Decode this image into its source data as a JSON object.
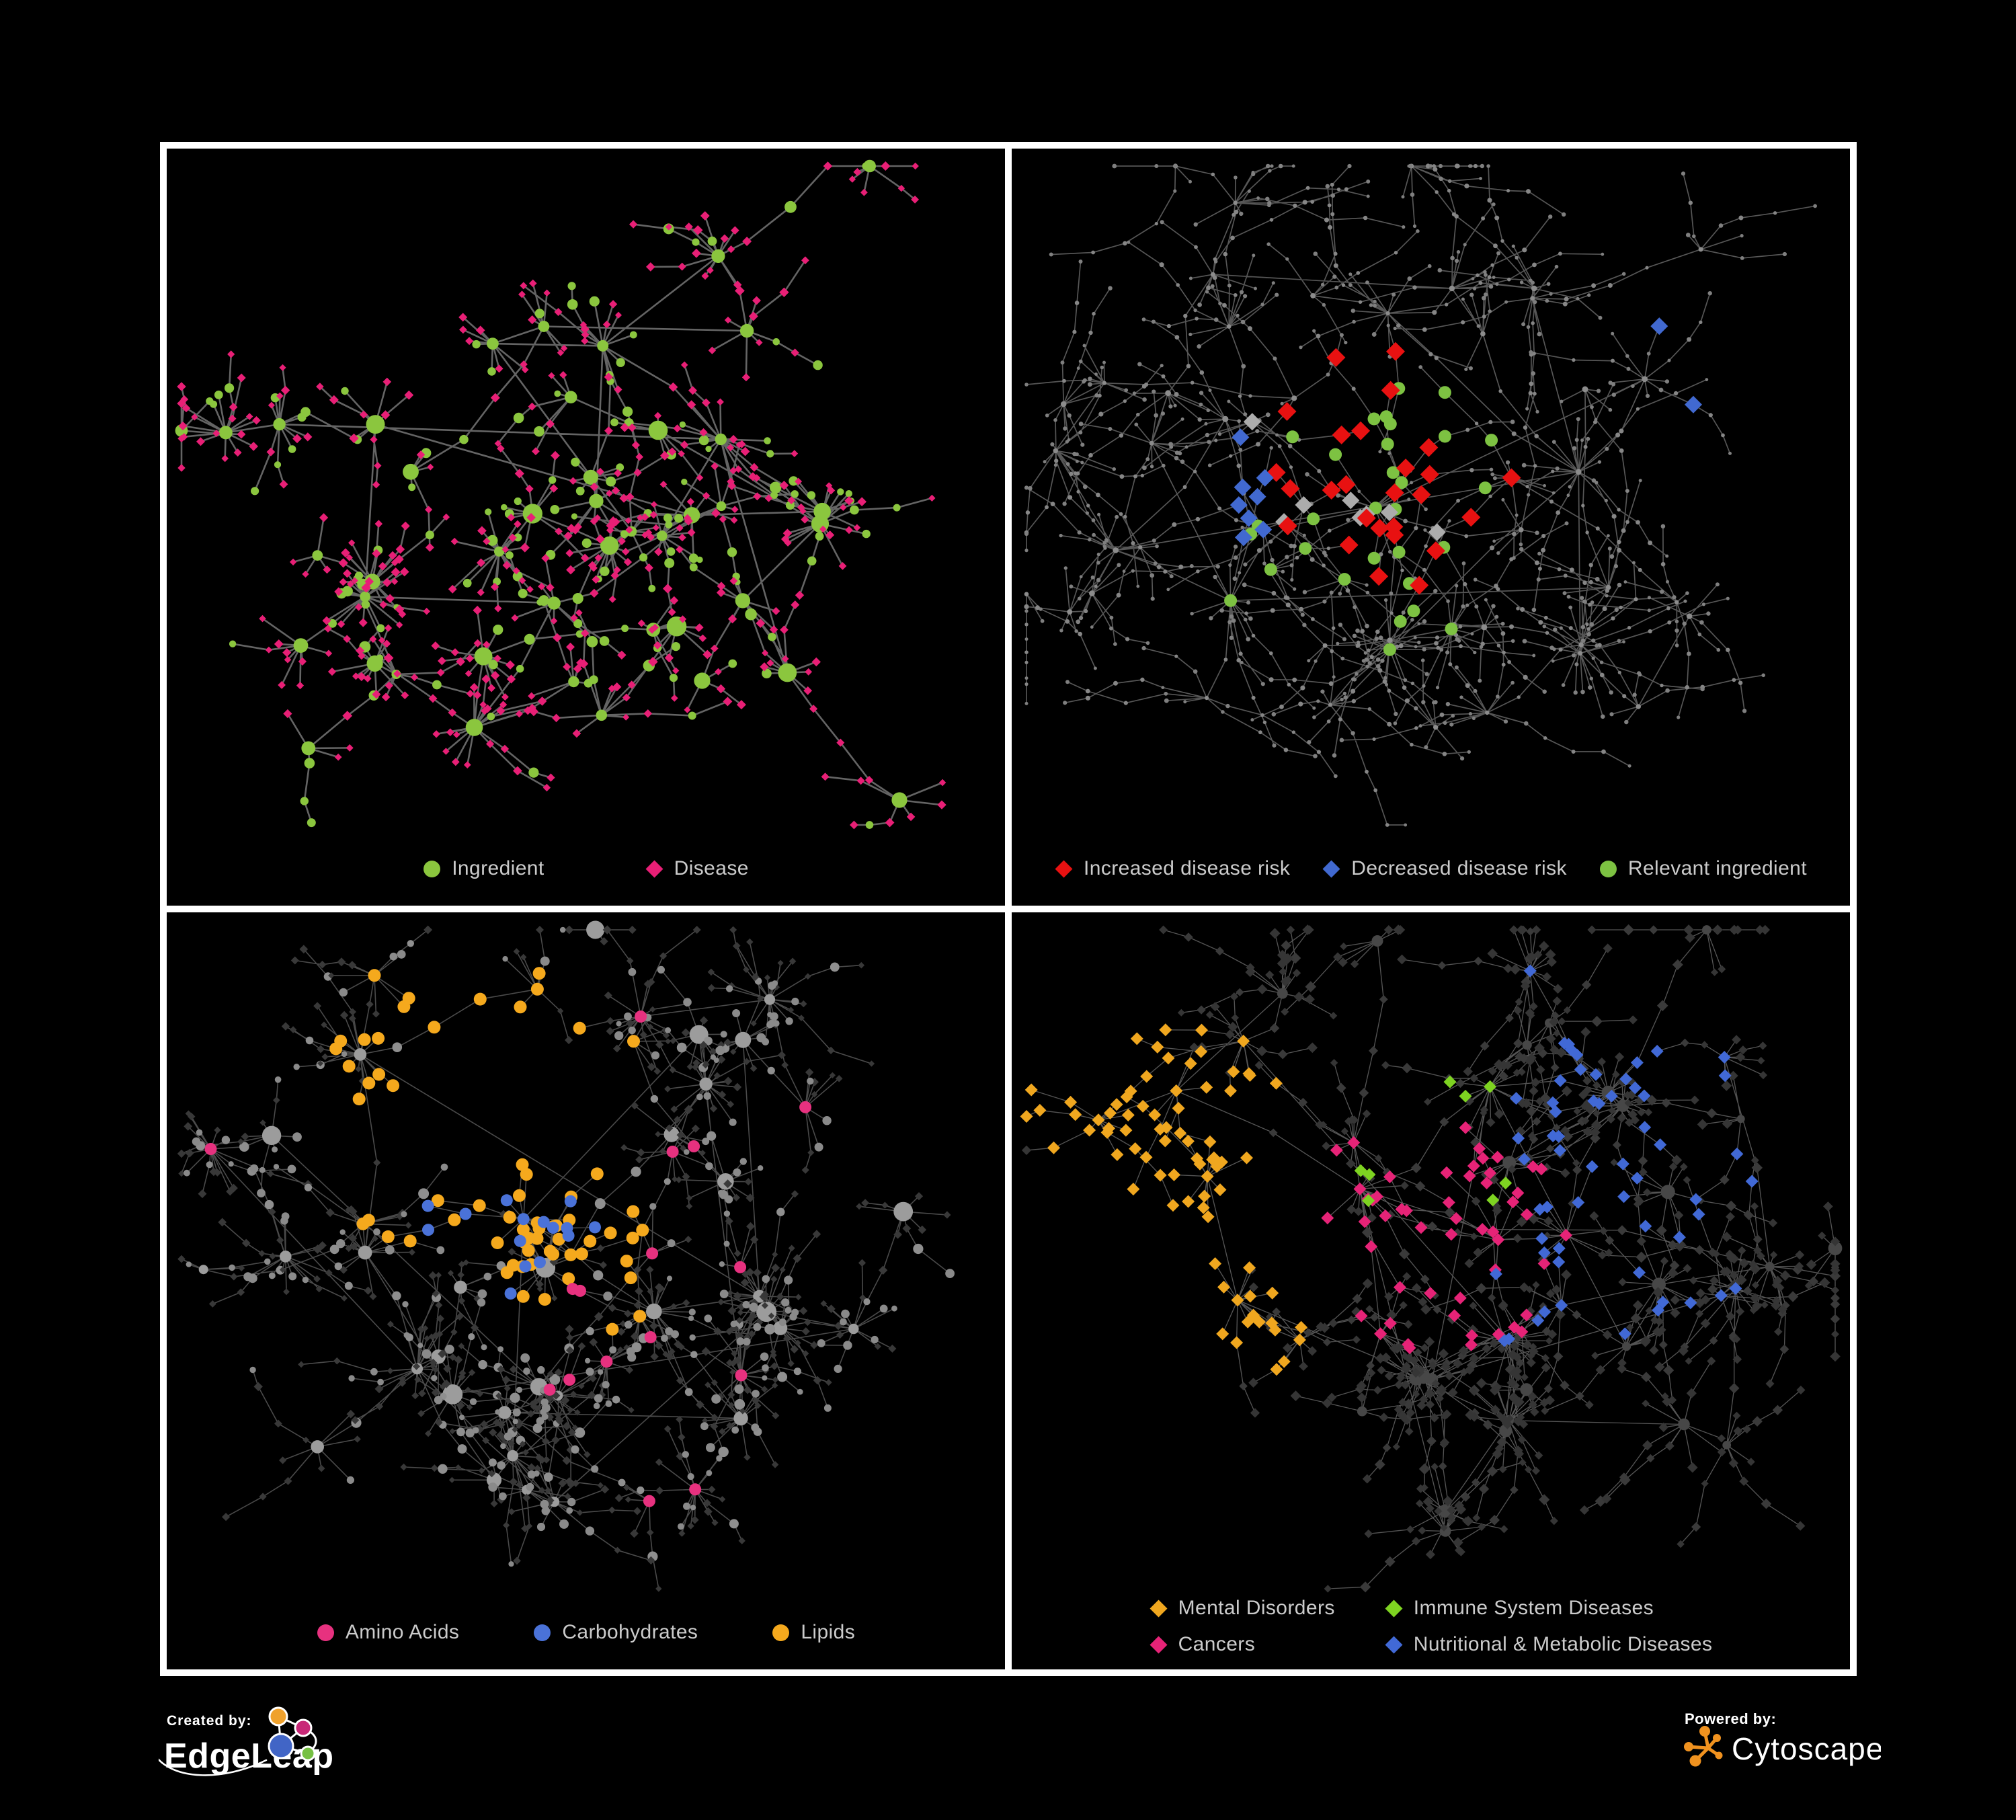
{
  "canvas": {
    "background": "#000000",
    "frame_color": "#ffffff"
  },
  "branding": {
    "created_by": {
      "label": "Created by:",
      "name": "EdgeLeap"
    },
    "powered_by": {
      "label": "Powered by:",
      "name": "Cytoscape",
      "accent": "#F0921F"
    }
  },
  "panels": [
    {
      "name": "ingredient-disease-network",
      "legend_layout": "row",
      "legend_gap": 150,
      "legend": [
        {
          "label": "Ingredient",
          "shape": "circle",
          "color": "#8BC63E"
        },
        {
          "label": "Disease",
          "shape": "diamond",
          "color": "#E81F76"
        }
      ],
      "net": {
        "seed": 9001,
        "clusters": 30,
        "leaf_min": 6,
        "leaf_max": 17,
        "tendril_p": 0.26,
        "tendril_max": 2,
        "satellite_p": 0.45,
        "cross": 7,
        "core": 0.52,
        "ring": [
          0.55,
          0.88
        ],
        "edge": {
          "color": "#6F6F6F",
          "width": 2.6,
          "opacity": 0.9
        },
        "styles": {
          "hub": [
            {
              "p": 1.0,
              "shape": "circle",
              "color": "#8BC63E",
              "s": [
                7,
                15
              ]
            }
          ],
          "mid": [
            {
              "p": 0.5,
              "shape": "circle",
              "color": "#8BC63E",
              "s": [
                5,
                9
              ]
            },
            {
              "p": 0.5,
              "shape": "diamond",
              "color": "#E81F76",
              "s": [
                5.5,
                7.5
              ]
            }
          ],
          "leaf": [
            {
              "p": 0.22,
              "shape": "circle",
              "color": "#8BC63E",
              "s": [
                4.5,
                8
              ]
            },
            {
              "p": 0.78,
              "shape": "diamond",
              "color": "#E81F76",
              "s": [
                5,
                7
              ]
            }
          ]
        },
        "highlights": []
      }
    },
    {
      "name": "disease-risk-network",
      "legend_layout": "row",
      "legend_gap": 48,
      "legend": [
        {
          "label": "Increased disease risk",
          "shape": "diamond",
          "color": "#E81111"
        },
        {
          "label": "Decreased disease risk",
          "shape": "diamond",
          "color": "#4169D0"
        },
        {
          "label": "Relevant ingredient",
          "shape": "circle",
          "color": "#7DC242"
        }
      ],
      "net": {
        "seed": 4202,
        "clusters": 34,
        "leaf_min": 4,
        "leaf_max": 13,
        "tendril_p": 0.5,
        "tendril_max": 4,
        "satellite_p": 0.5,
        "cross": 5,
        "core": 0.55,
        "ring": [
          0.6,
          0.95
        ],
        "edge": {
          "color": "#5F5F5F",
          "width": 1.7,
          "opacity": 0.9
        },
        "styles": {
          "hub": [
            {
              "p": 1.0,
              "shape": "circle",
              "color": "#8C8C8C",
              "s": [
                3,
                4.6
              ]
            }
          ],
          "mid": [
            {
              "p": 1.0,
              "shape": "circle",
              "color": "#868686",
              "s": [
                2.6,
                3.6
              ]
            }
          ],
          "leaf": [
            {
              "p": 1.0,
              "shape": "circle",
              "color": "#7F7F7F",
              "s": [
                2.4,
                3.4
              ]
            }
          ]
        },
        "highlights": [
          {
            "count": 26,
            "shape": "diamond",
            "color": "#E81111",
            "size": 14,
            "fx": 0.45,
            "fy": 0.47,
            "sigma": 270
          },
          {
            "count": 8,
            "shape": "diamond",
            "color": "#ACACAC",
            "size": 13,
            "fx": 0.42,
            "fy": 0.5,
            "sigma": 300
          },
          {
            "count": 8,
            "shape": "diamond",
            "color": "#4169D0",
            "size": 13,
            "fx": 0.28,
            "fy": 0.52,
            "sigma": 140
          },
          {
            "count": 2,
            "shape": "diamond",
            "color": "#4169D0",
            "size": 13,
            "fx": 0.86,
            "fy": 0.3,
            "sigma": 90
          },
          {
            "count": 30,
            "shape": "circle",
            "color": "#7DC242",
            "size": 9.5,
            "fx": 0.44,
            "fy": 0.5,
            "sigma": 290
          }
        ]
      }
    },
    {
      "name": "nutrient-class-network",
      "legend_layout": "row",
      "legend_gap": 110,
      "legend": [
        {
          "label": "Amino Acids",
          "shape": "circle",
          "color": "#E7317F"
        },
        {
          "label": "Carbohydrates",
          "shape": "circle",
          "color": "#4A72D8"
        },
        {
          "label": "Lipids",
          "shape": "circle",
          "color": "#F5A91D"
        }
      ],
      "net": {
        "seed": 7300,
        "clusters": 36,
        "leaf_min": 7,
        "leaf_max": 19,
        "tendril_p": 0.3,
        "tendril_max": 2,
        "satellite_p": 0.4,
        "cross": 10,
        "core": 0.5,
        "ring": [
          0.55,
          0.9
        ],
        "edge": {
          "color": "#4E4E4E",
          "width": 1.6,
          "opacity": 0.95
        },
        "styles": {
          "hub": [
            {
              "p": 1.0,
              "shape": "circle",
              "color": "#9C9C9C",
              "s": [
                7,
                15
              ]
            }
          ],
          "mid": [
            {
              "p": 0.5,
              "shape": "circle",
              "color": "#8F8F8F",
              "s": [
                5,
                8
              ]
            },
            {
              "p": 0.5,
              "shape": "diamond",
              "color": "#3A3A3A",
              "s": [
                5,
                7
              ]
            }
          ],
          "leaf": [
            {
              "p": 0.3,
              "shape": "circle",
              "color": "#8A8A8A",
              "s": [
                4,
                7
              ]
            },
            {
              "p": 0.7,
              "shape": "diamond",
              "color": "#383838",
              "s": [
                4.5,
                6.5
              ]
            }
          ]
        },
        "highlights": [
          {
            "count": 40,
            "shape": "circle",
            "color": "#F5A91D",
            "size": 9.5,
            "fx": 0.37,
            "fy": 0.3,
            "sigma": 210
          },
          {
            "count": 24,
            "shape": "circle",
            "color": "#F5A91D",
            "size": 9.5,
            "fx": 0.48,
            "fy": 0.53,
            "sigma": 160
          },
          {
            "count": 15,
            "shape": "circle",
            "color": "#4A72D8",
            "size": 9,
            "fx": 0.41,
            "fy": 0.4,
            "sigma": 150
          },
          {
            "count": 16,
            "shape": "circle",
            "color": "#E7317F",
            "size": 9,
            "fx": 0.5,
            "fy": 0.5,
            "sigma": 1200
          }
        ]
      }
    },
    {
      "name": "disease-category-network",
      "legend_layout": "grid",
      "legend_gap": 74,
      "legend": [
        {
          "label": "Mental Disorders",
          "shape": "diamond",
          "color": "#F0A71F"
        },
        {
          "label": "Immune System Diseases",
          "shape": "diamond",
          "color": "#7ED321"
        },
        {
          "label": "Cancers",
          "shape": "diamond",
          "color": "#E62377"
        },
        {
          "label": "Nutritional & Metabolic Diseases",
          "shape": "diamond",
          "color": "#4169D6"
        }
      ],
      "net": {
        "seed": 5604,
        "clusters": 36,
        "leaf_min": 6,
        "leaf_max": 16,
        "tendril_p": 0.33,
        "tendril_max": 3,
        "satellite_p": 0.45,
        "cross": 8,
        "core": 0.55,
        "ring": [
          0.58,
          0.92
        ],
        "edge": {
          "color": "#585858",
          "width": 1.35,
          "opacity": 0.95
        },
        "styles": {
          "hub": [
            {
              "p": 1.0,
              "shape": "circle",
              "color": "#474747",
              "s": [
                6,
                11
              ]
            }
          ],
          "mid": [
            {
              "p": 1.0,
              "shape": "diamond",
              "color": "#3A3A3A",
              "s": [
                6,
                8.5
              ]
            }
          ],
          "leaf": [
            {
              "p": 1.0,
              "shape": "diamond",
              "color": "#353535",
              "s": [
                5.5,
                8
              ]
            }
          ]
        },
        "highlights": [
          {
            "count": 78,
            "shape": "diamond",
            "color": "#F0A71F",
            "size": 9.5,
            "fx": 0.16,
            "fy": 0.45,
            "sigma": 160
          },
          {
            "count": 52,
            "shape": "diamond",
            "color": "#E62377",
            "size": 9.5,
            "fx": 0.51,
            "fy": 0.47,
            "sigma": 210
          },
          {
            "count": 58,
            "shape": "diamond",
            "color": "#4169D6",
            "size": 9.5,
            "fx": 0.71,
            "fy": 0.4,
            "sigma": 380
          },
          {
            "count": 8,
            "shape": "diamond",
            "color": "#7ED321",
            "size": 9.5,
            "fx": 0.5,
            "fy": 0.36,
            "sigma": 280
          }
        ]
      }
    }
  ]
}
